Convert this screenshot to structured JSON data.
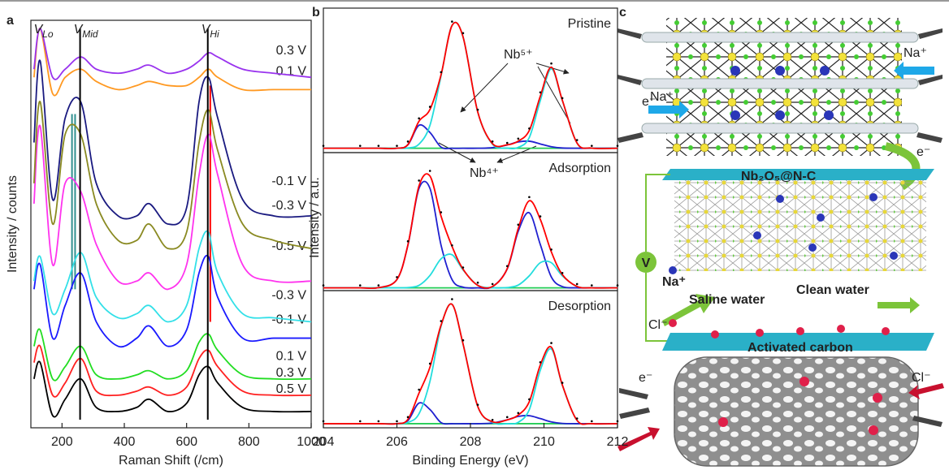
{
  "chart_data": [
    {
      "type": "line",
      "panel_label": "a",
      "xlabel": "Raman Shift (/cm)",
      "ylabel": "Intensity / counts",
      "xlim": [
        100,
        1000
      ],
      "xticks": [
        200,
        400,
        600,
        800,
        1000
      ],
      "ylim": [
        0,
        100
      ],
      "x": [
        110,
        130,
        170,
        210,
        260,
        310,
        380,
        440,
        480,
        540,
        600,
        640,
        670,
        700,
        780,
        880,
        1000
      ],
      "series": [
        {
          "name": "0.5 V",
          "color": "#000000",
          "values": [
            12,
            16,
            3,
            7,
            12,
            5,
            4,
            5,
            7,
            4,
            6,
            13,
            15,
            11,
            5,
            4,
            4
          ]
        },
        {
          "name": "0.3 V",
          "color": "#ff2020",
          "values": [
            16,
            20,
            8,
            11,
            17,
            9,
            8,
            9,
            10,
            8,
            10,
            17,
            19,
            15,
            9,
            8,
            8
          ]
        },
        {
          "name": "0.1 V",
          "color": "#22dd22",
          "values": [
            20,
            24,
            12,
            15,
            20,
            13,
            12,
            13,
            14,
            12,
            14,
            21,
            23,
            19,
            13,
            12,
            12
          ]
        },
        {
          "name": "-0.1 V",
          "color": "#1a1aff",
          "values": [
            34,
            40,
            22,
            30,
            38,
            26,
            20,
            22,
            25,
            20,
            24,
            38,
            42,
            32,
            22,
            22,
            22
          ]
        },
        {
          "name": "-0.3 V",
          "color": "#33e0e8",
          "values": [
            36,
            42,
            28,
            34,
            43,
            32,
            27,
            28,
            30,
            26,
            30,
            44,
            48,
            38,
            28,
            27,
            26
          ]
        },
        {
          "name": "-0.5 V",
          "color": "#ff33ee",
          "values": [
            55,
            74,
            40,
            60,
            58,
            45,
            36,
            36,
            38,
            34,
            40,
            62,
            72,
            62,
            40,
            36,
            36
          ]
        },
        {
          "name": "-0.3 V",
          "color": "#8a8a22",
          "values": [
            60,
            80,
            50,
            72,
            72,
            55,
            46,
            46,
            50,
            44,
            48,
            70,
            78,
            68,
            50,
            46,
            44
          ]
        },
        {
          "name": "-0.1 V",
          "color": "#1a1a80",
          "values": [
            70,
            90,
            56,
            76,
            80,
            60,
            52,
            52,
            55,
            50,
            54,
            80,
            86,
            76,
            56,
            52,
            52
          ]
        },
        {
          "name": "0.1 V",
          "color": "#ff9922",
          "values": [
            86,
            98,
            82,
            86,
            88,
            85,
            83,
            84,
            85,
            84,
            84,
            86,
            88,
            86,
            83,
            83,
            83
          ]
        },
        {
          "name": "0.3 V",
          "color": "#9933ee",
          "values": [
            88,
            98,
            86,
            88,
            91,
            88,
            87,
            88,
            89,
            87,
            88,
            90,
            92,
            91,
            88,
            87,
            86
          ]
        }
      ],
      "markers": [
        {
          "x": 130,
          "label": "V",
          "sub": "Lo"
        },
        {
          "x": 258,
          "label": "V",
          "sub": "Mid",
          "color": "#000000",
          "span": [
            2,
            98
          ]
        },
        {
          "x": 668,
          "label": "V",
          "sub": "Hi",
          "color": "#000000",
          "span": [
            2,
            98
          ]
        }
      ],
      "reference_lines": [
        {
          "x": 232,
          "color": "#2f8f8f",
          "span": [
            34,
            77
          ]
        },
        {
          "x": 242,
          "color": "#2f8f8f",
          "span": [
            34,
            77
          ]
        },
        {
          "x": 676,
          "color": "#ff0000",
          "span": [
            26,
            84
          ]
        }
      ]
    },
    {
      "type": "line",
      "panel_label": "b",
      "title": "Pristine",
      "xlim": [
        204,
        212
      ],
      "ylim": [
        0,
        100
      ],
      "annotations": [
        "Nb⁵⁺",
        "Nb⁴⁺"
      ],
      "x": [
        204,
        205,
        205.5,
        206,
        206.3,
        206.6,
        206.9,
        207.2,
        207.5,
        207.8,
        208.2,
        208.6,
        209,
        209.3,
        209.6,
        209.9,
        210.2,
        210.5,
        210.9,
        211.3,
        212
      ],
      "series": [
        {
          "color": "#22cc55",
          "values": [
            3,
            3,
            3,
            3,
            3,
            3,
            3,
            3,
            3,
            3,
            3,
            3,
            3,
            3,
            3,
            3,
            3,
            3,
            3,
            3,
            3
          ]
        },
        {
          "color": "#2020d0",
          "values": [
            3,
            3,
            3,
            3,
            5.4,
            18.9,
            13.9,
            3.8,
            3,
            3,
            3,
            3.4,
            5.3,
            7.4,
            7.9,
            6,
            4.1,
            3.2,
            3,
            3,
            3
          ]
        },
        {
          "color": "#22dddd",
          "values": [
            3,
            3,
            3,
            3,
            3.2,
            5.8,
            19,
            53,
            88,
            80,
            28,
            5.8,
            3.1,
            3.6,
            10.4,
            36,
            58,
            36,
            6.6,
            3.1,
            3
          ]
        },
        {
          "color": "#ff0000",
          "values": [
            3,
            3,
            3,
            3,
            5.6,
            21.7,
            29.9,
            53.8,
            88,
            80,
            28,
            6.2,
            5.4,
            8,
            15.3,
            39,
            59.1,
            36.2,
            6.6,
            3.1,
            3
          ]
        },
        {
          "color": "#000000",
          "marker": true,
          "values": [
            3,
            3,
            3,
            3,
            6,
            22,
            30,
            54,
            89,
            81,
            28,
            6,
            5,
            8,
            15,
            40,
            60,
            36,
            7,
            3,
            3
          ]
        }
      ]
    },
    {
      "type": "line",
      "title": "Adsorption",
      "ylabel": "Intensity / a.u.",
      "xlim": [
        204,
        212
      ],
      "ylim": [
        0,
        100
      ],
      "x": [
        204,
        205,
        205.5,
        206,
        206.3,
        206.6,
        206.9,
        207.2,
        207.5,
        207.8,
        208.2,
        208.6,
        209,
        209.3,
        209.6,
        209.9,
        210.2,
        210.5,
        210.9,
        211.3,
        212
      ],
      "series": [
        {
          "color": "#22cc55",
          "values": [
            2,
            2,
            2,
            2,
            2,
            2,
            2,
            2,
            2,
            2,
            2,
            2,
            2,
            2,
            2,
            2,
            2,
            2,
            2,
            2,
            2
          ]
        },
        {
          "color": "#2020d0",
          "values": [
            2,
            2,
            2.1,
            8,
            33,
            74,
            74,
            33,
            8,
            2.5,
            2,
            2.9,
            15.7,
            43,
            56.4,
            33.4,
            9.9,
            2.9,
            2,
            2,
            2
          ]
        },
        {
          "color": "#22dddd",
          "values": [
            2,
            2,
            2,
            2,
            2.2,
            3.8,
            11,
            23,
            26,
            15,
            3.8,
            2.1,
            2.2,
            4,
            10.7,
            20.2,
            20.2,
            10.7,
            3,
            2,
            2
          ]
        },
        {
          "color": "#ff0000",
          "values": [
            2,
            2,
            2.1,
            8,
            33.2,
            75.8,
            83,
            54,
            32,
            15.5,
            3.8,
            3,
            15.9,
            45,
            65.1,
            51.6,
            28.1,
            11.6,
            3,
            2,
            2
          ]
        },
        {
          "color": "#000000",
          "marker": true,
          "values": [
            2,
            2,
            2,
            8,
            34,
            78,
            85,
            55,
            31,
            15,
            4,
            3,
            16,
            46,
            66,
            52,
            28,
            11,
            3,
            2,
            2
          ]
        }
      ]
    },
    {
      "type": "line",
      "title": "Desorption",
      "xlabel": "Binding Energy (eV)",
      "xlim": [
        204,
        212
      ],
      "ylim": [
        0,
        100
      ],
      "xticks": [
        204,
        206,
        208,
        210,
        212
      ],
      "x": [
        204,
        205,
        205.5,
        206,
        206.3,
        206.6,
        206.9,
        207.2,
        207.5,
        207.8,
        208.2,
        208.6,
        209,
        209.3,
        209.6,
        209.9,
        210.2,
        210.5,
        210.9,
        211.3,
        212
      ],
      "series": [
        {
          "color": "#22cc55",
          "values": [
            3,
            3,
            3,
            3,
            3,
            3,
            3,
            3,
            3,
            3,
            3,
            3,
            3,
            3,
            3,
            3,
            3,
            3,
            3,
            3,
            3
          ]
        },
        {
          "color": "#2020d0",
          "values": [
            3,
            3,
            3,
            3,
            5.3,
            18,
            13.3,
            3.8,
            3,
            3,
            3,
            3.5,
            5.8,
            8.3,
            8.8,
            6.7,
            4.3,
            3.2,
            3,
            3,
            3
          ]
        },
        {
          "color": "#22dddd",
          "values": [
            3,
            3,
            3,
            3,
            3.9,
            10.2,
            34,
            74,
            90,
            61,
            15.5,
            3.9,
            3,
            4,
            13.2,
            42,
            57.5,
            31,
            5.4,
            3,
            3
          ]
        },
        {
          "color": "#ff0000",
          "values": [
            3,
            3,
            3,
            3,
            6.2,
            25.2,
            44.3,
            74.8,
            90,
            61,
            15.5,
            4.4,
            5.8,
            9.3,
            19,
            45.7,
            58.8,
            31.2,
            5.4,
            3,
            3
          ]
        },
        {
          "color": "#000000",
          "marker": true,
          "values": [
            3,
            3,
            3,
            3,
            6,
            26,
            45,
            76,
            92,
            62,
            15,
            4,
            6,
            9,
            19,
            46,
            60,
            31,
            5,
            3,
            3
          ]
        }
      ]
    }
  ],
  "diagram": {
    "panel_label": "c",
    "labels": [
      "e⁻",
      "Na⁺",
      "Na⁺",
      "e⁻",
      "Nb₂O₅@N-C",
      "V",
      "Na⁺",
      "Saline water",
      "Clean water",
      "Cl⁻",
      "Activated carbon",
      "e⁻",
      "Cl⁻"
    ]
  }
}
